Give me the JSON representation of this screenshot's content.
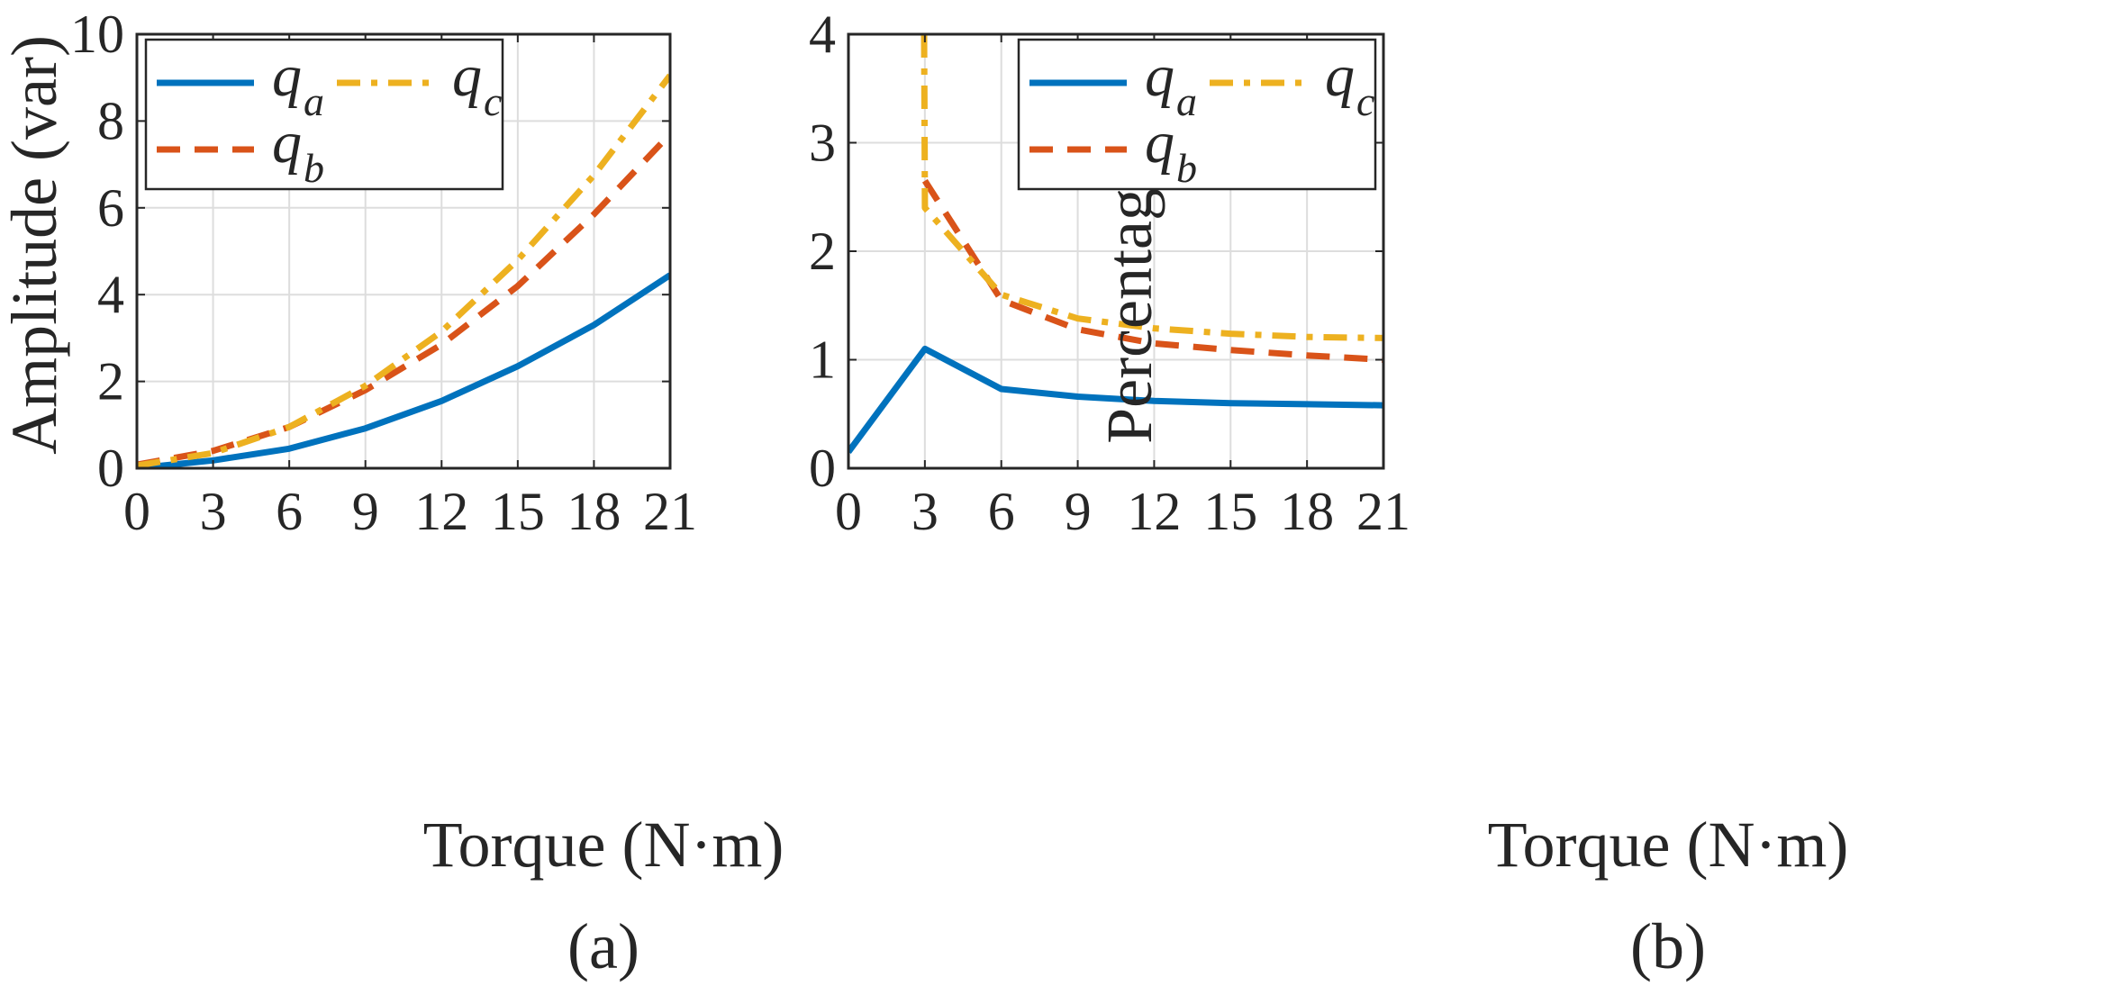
{
  "figure": {
    "panels": [
      "a",
      "b"
    ]
  },
  "chart_data": [
    {
      "id": "a",
      "type": "line",
      "caption": "(a)",
      "xlabel": "Torque (N·m)",
      "ylabel": "Amplitude (var)",
      "xlim": [
        0,
        21
      ],
      "ylim": [
        0,
        10
      ],
      "xticks": [
        0,
        3,
        6,
        9,
        12,
        15,
        18,
        21
      ],
      "xtick_labels": [
        "0",
        "3",
        "6",
        "9",
        "12",
        "15",
        "18",
        "21"
      ],
      "yticks": [
        0,
        2,
        4,
        6,
        8,
        10
      ],
      "ytick_labels": [
        "0",
        "2",
        "4",
        "6",
        "8",
        "10"
      ],
      "grid": true,
      "legend_position": "top-left",
      "x": [
        0,
        3,
        6,
        9,
        12,
        15,
        18,
        21
      ],
      "series": [
        {
          "key": "qa",
          "name": "q",
          "subscript": "a",
          "color": "#0072BD",
          "style": "solid",
          "values": [
            0.0,
            0.18,
            0.45,
            0.92,
            1.55,
            2.35,
            3.3,
            4.45
          ]
        },
        {
          "key": "qb",
          "name": "q",
          "subscript": "b",
          "color": "#D95319",
          "style": "dashed",
          "values": [
            0.08,
            0.4,
            0.95,
            1.8,
            2.85,
            4.2,
            5.85,
            7.7
          ]
        },
        {
          "key": "qc",
          "name": "q",
          "subscript": "c",
          "color": "#EDB120",
          "style": "dashdot",
          "values": [
            0.06,
            0.35,
            0.95,
            1.9,
            3.15,
            4.8,
            6.75,
            9.05
          ]
        }
      ]
    },
    {
      "id": "b",
      "type": "line",
      "caption": "(b)",
      "xlabel": "Torque (N·m)",
      "ylabel": "Percentage (%)",
      "xlim": [
        0,
        21
      ],
      "ylim": [
        0,
        4
      ],
      "xticks": [
        0,
        3,
        6,
        9,
        12,
        15,
        18,
        21
      ],
      "xtick_labels": [
        "0",
        "3",
        "6",
        "9",
        "12",
        "15",
        "18",
        "21"
      ],
      "yticks": [
        0,
        1,
        2,
        3,
        4
      ],
      "ytick_labels": [
        "0",
        "1",
        "2",
        "3",
        "4"
      ],
      "grid": true,
      "legend_position": "top-right",
      "series": [
        {
          "key": "qa",
          "name": "q",
          "subscript": "a",
          "color": "#0072BD",
          "style": "solid",
          "x": [
            0,
            3,
            6,
            9,
            12,
            15,
            18,
            21
          ],
          "values": [
            0.15,
            1.1,
            0.73,
            0.66,
            0.62,
            0.6,
            0.59,
            0.58
          ]
        },
        {
          "key": "qb",
          "name": "q",
          "subscript": "b",
          "color": "#D95319",
          "style": "dashed",
          "x": [
            3,
            6,
            9,
            12,
            15,
            18,
            21
          ],
          "values": [
            2.65,
            1.55,
            1.28,
            1.15,
            1.09,
            1.04,
            1.0
          ]
        },
        {
          "key": "qc",
          "name": "q",
          "subscript": "c",
          "color": "#EDB120",
          "style": "dashdot",
          "x": [
            2.97,
            2.99,
            3,
            6,
            9,
            12,
            15,
            18,
            21
          ],
          "values": [
            4.0,
            3.0,
            2.4,
            1.6,
            1.38,
            1.29,
            1.24,
            1.21,
            1.2
          ]
        }
      ]
    }
  ]
}
